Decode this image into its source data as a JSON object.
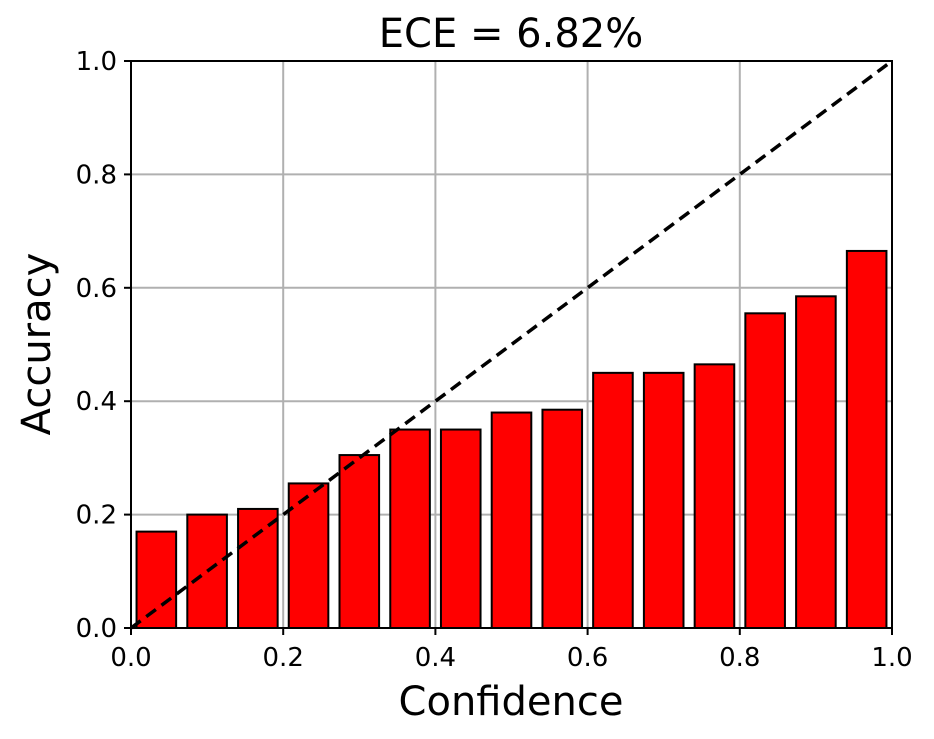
{
  "chart_data": {
    "type": "bar",
    "title": "ECE = 6.82%",
    "xlabel": "Confidence",
    "ylabel": "Accuracy",
    "xlim": [
      0.0,
      1.0
    ],
    "ylim": [
      0.0,
      1.0
    ],
    "x_ticks": [
      "0.0",
      "0.2",
      "0.4",
      "0.6",
      "0.8",
      "1.0"
    ],
    "y_ticks": [
      "0.0",
      "0.2",
      "0.4",
      "0.6",
      "0.8",
      "1.0"
    ],
    "grid": true,
    "bar_color": "#ff0000",
    "bar_edge_color": "#000000",
    "diagonal_color": "#000000",
    "bin_width": 0.0667,
    "bins": [
      {
        "x": 0.0333,
        "value": 0.17
      },
      {
        "x": 0.1,
        "value": 0.2
      },
      {
        "x": 0.1667,
        "value": 0.21
      },
      {
        "x": 0.2333,
        "value": 0.255
      },
      {
        "x": 0.3,
        "value": 0.305
      },
      {
        "x": 0.3667,
        "value": 0.35
      },
      {
        "x": 0.4333,
        "value": 0.35
      },
      {
        "x": 0.5,
        "value": 0.38
      },
      {
        "x": 0.5667,
        "value": 0.385
      },
      {
        "x": 0.6333,
        "value": 0.45
      },
      {
        "x": 0.7,
        "value": 0.45
      },
      {
        "x": 0.7667,
        "value": 0.465
      },
      {
        "x": 0.8333,
        "value": 0.555
      },
      {
        "x": 0.9,
        "value": 0.585
      },
      {
        "x": 0.9667,
        "value": 0.665
      }
    ]
  }
}
